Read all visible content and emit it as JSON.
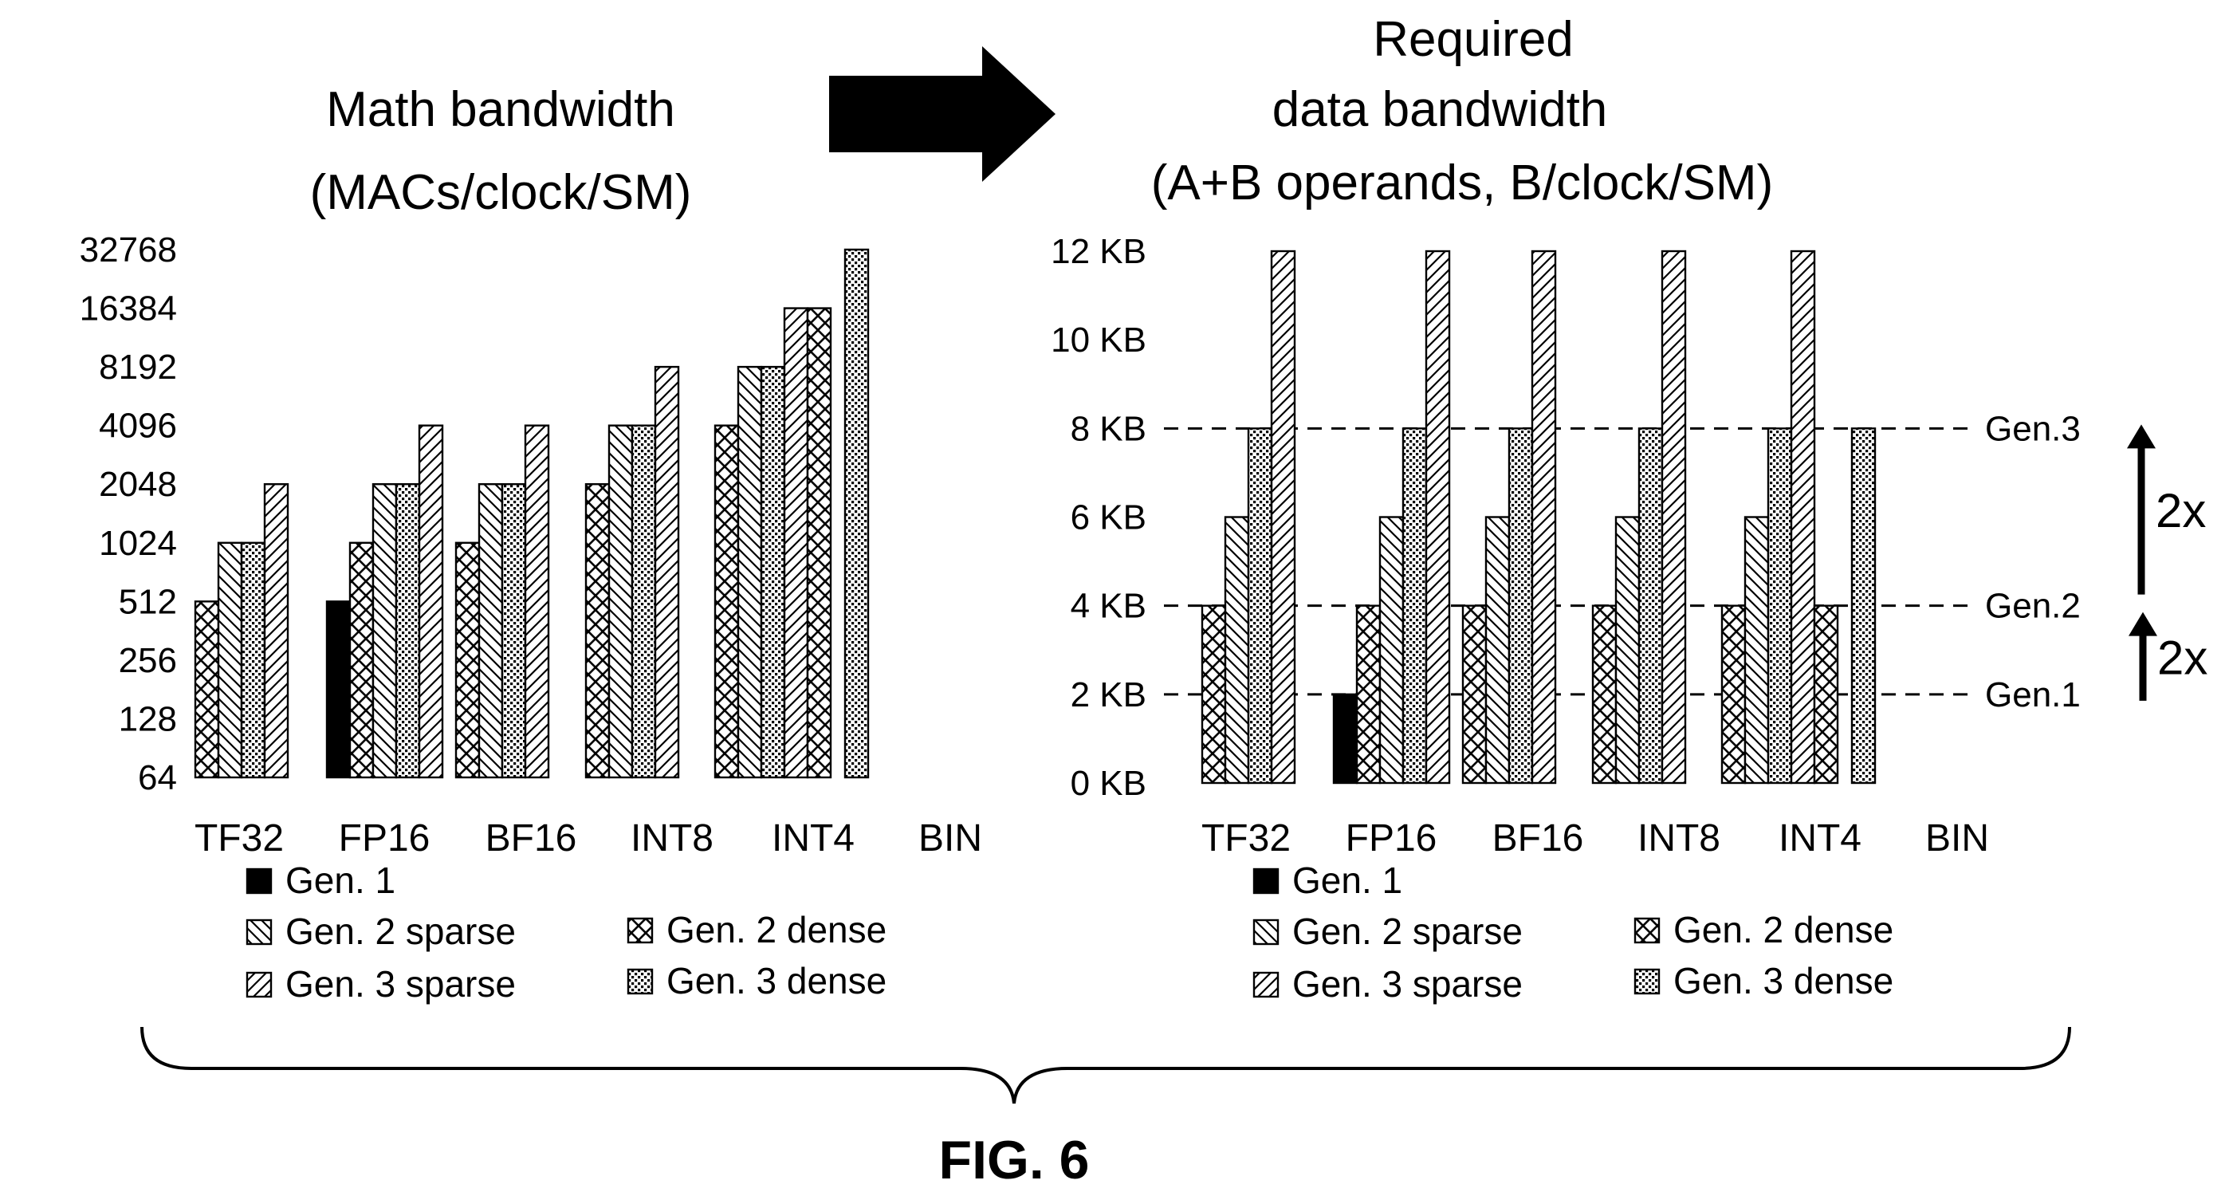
{
  "colors": {
    "ink": "#000000",
    "background": "#ffffff"
  },
  "series": [
    {
      "key": "gen1",
      "name": "Gen. 1",
      "pattern": "solid"
    },
    {
      "key": "gen2s",
      "name": "Gen. 2 sparse",
      "pattern": "backslash-hatch"
    },
    {
      "key": "gen2d",
      "name": "Gen. 2 dense",
      "pattern": "crosshatch"
    },
    {
      "key": "gen3s",
      "name": "Gen. 3 sparse",
      "pattern": "slash-hatch"
    },
    {
      "key": "gen3d",
      "name": "Gen. 3 dense",
      "pattern": "dots"
    }
  ],
  "arrow_icon": "right-arrow-icon",
  "figure_label": "FIG. 6",
  "chart_data": [
    {
      "type": "bar",
      "title": [
        "Math bandwidth",
        "(MACs/clock/SM)"
      ],
      "scale": "log2",
      "ylim": [
        64,
        32768
      ],
      "yticks": [
        64,
        128,
        256,
        512,
        1024,
        2048,
        4096,
        8192,
        16384,
        32768
      ],
      "ytick_labels": [
        "64",
        "128",
        "256",
        "512",
        "1024",
        "2048",
        "4096",
        "8192",
        "16384",
        "32768"
      ],
      "categories": [
        "TF32",
        "FP16",
        "BF16",
        "INT8",
        "INT4",
        "BIN"
      ],
      "groups": [
        {
          "category": "TF32",
          "bars": [
            {
              "s": "gen2d",
              "v": 512
            },
            {
              "s": "gen2s",
              "v": 1024
            },
            {
              "s": "gen3d",
              "v": 1024
            },
            {
              "s": "gen3s",
              "v": 2048
            }
          ]
        },
        {
          "category": "FP16",
          "bars": [
            {
              "s": "gen1",
              "v": 512
            },
            {
              "s": "gen2d",
              "v": 1024
            },
            {
              "s": "gen2s",
              "v": 2048
            },
            {
              "s": "gen3d",
              "v": 2048
            },
            {
              "s": "gen3s",
              "v": 4096
            }
          ]
        },
        {
          "category": "BF16",
          "bars": [
            {
              "s": "gen2d",
              "v": 1024
            },
            {
              "s": "gen2s",
              "v": 2048
            },
            {
              "s": "gen3d",
              "v": 2048
            },
            {
              "s": "gen3s",
              "v": 4096
            }
          ]
        },
        {
          "category": "INT8",
          "bars": [
            {
              "s": "gen2d",
              "v": 2048
            },
            {
              "s": "gen2s",
              "v": 4096
            },
            {
              "s": "gen3d",
              "v": 4096
            },
            {
              "s": "gen3s",
              "v": 8192
            }
          ]
        },
        {
          "category": "INT4",
          "bars": [
            {
              "s": "gen2d",
              "v": 4096
            },
            {
              "s": "gen2s",
              "v": 8192
            },
            {
              "s": "gen3d",
              "v": 8192
            },
            {
              "s": "gen3s",
              "v": 16384
            },
            {
              "s": "gen2d",
              "v": 16384
            }
          ]
        },
        {
          "category": "BIN",
          "bars": [
            {
              "s": "gen3d",
              "v": 32768
            }
          ]
        }
      ],
      "legend": [
        "Gen. 1",
        "Gen. 2 sparse",
        "Gen. 2 dense",
        "Gen. 3 sparse",
        "Gen. 3 dense"
      ]
    },
    {
      "type": "bar",
      "title": [
        "Required",
        "data bandwidth",
        "(A+B operands, B/clock/SM)"
      ],
      "scale": "linear",
      "ylim": [
        0,
        12
      ],
      "unit": "KB",
      "yticks": [
        0,
        2,
        4,
        6,
        8,
        10,
        12
      ],
      "ytick_labels": [
        "0 KB",
        "2 KB",
        "4 KB",
        "6 KB",
        "8 KB",
        "10 KB",
        "12 KB"
      ],
      "categories": [
        "TF32",
        "FP16",
        "BF16",
        "INT8",
        "INT4",
        "BIN"
      ],
      "groups": [
        {
          "category": "TF32",
          "bars": [
            {
              "s": "gen2d",
              "v": 4
            },
            {
              "s": "gen2s",
              "v": 6
            },
            {
              "s": "gen3d",
              "v": 8
            },
            {
              "s": "gen3s",
              "v": 12
            }
          ]
        },
        {
          "category": "FP16",
          "bars": [
            {
              "s": "gen1",
              "v": 2
            },
            {
              "s": "gen2d",
              "v": 4
            },
            {
              "s": "gen2s",
              "v": 6
            },
            {
              "s": "gen3d",
              "v": 8
            },
            {
              "s": "gen3s",
              "v": 12
            }
          ]
        },
        {
          "category": "BF16",
          "bars": [
            {
              "s": "gen2d",
              "v": 4
            },
            {
              "s": "gen2s",
              "v": 6
            },
            {
              "s": "gen3d",
              "v": 8
            },
            {
              "s": "gen3s",
              "v": 12
            }
          ]
        },
        {
          "category": "INT8",
          "bars": [
            {
              "s": "gen2d",
              "v": 4
            },
            {
              "s": "gen2s",
              "v": 6
            },
            {
              "s": "gen3d",
              "v": 8
            },
            {
              "s": "gen3s",
              "v": 12
            }
          ]
        },
        {
          "category": "INT4",
          "bars": [
            {
              "s": "gen2d",
              "v": 4
            },
            {
              "s": "gen2s",
              "v": 6
            },
            {
              "s": "gen3d",
              "v": 8
            },
            {
              "s": "gen3s",
              "v": 12
            },
            {
              "s": "gen2d",
              "v": 4
            }
          ]
        },
        {
          "category": "BIN",
          "bars": [
            {
              "s": "gen3d",
              "v": 8
            }
          ]
        }
      ],
      "reference_lines": [
        {
          "value": 8,
          "label": "Gen.3"
        },
        {
          "value": 4,
          "label": "Gen.2"
        },
        {
          "value": 2,
          "label": "Gen.1"
        }
      ],
      "growth_annotations": [
        {
          "from": 4,
          "to": 8,
          "label": "2x"
        },
        {
          "from": 2,
          "to": 4,
          "label": "2x"
        }
      ],
      "legend": [
        "Gen. 1",
        "Gen. 2 sparse",
        "Gen. 2 dense",
        "Gen. 3 sparse",
        "Gen. 3 dense"
      ]
    }
  ]
}
